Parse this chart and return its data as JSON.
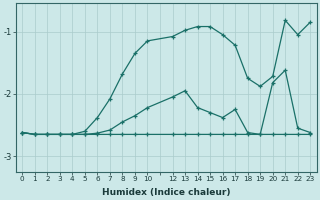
{
  "xlabel": "Humidex (Indice chaleur)",
  "bg_color": "#cce8e8",
  "grid_color": "#aacccc",
  "line_color": "#1a7068",
  "xlim": [
    -0.5,
    23.5
  ],
  "ylim": [
    -3.25,
    -0.55
  ],
  "yticks": [
    -3,
    -2,
    -1
  ],
  "line1_x": [
    0,
    1,
    2,
    3,
    4,
    5,
    6,
    7,
    8,
    9,
    10,
    12,
    13,
    14,
    15,
    16,
    17,
    18,
    19,
    20,
    21,
    22,
    23
  ],
  "line1_y": [
    -2.62,
    -2.65,
    -2.65,
    -2.65,
    -2.65,
    -2.65,
    -2.65,
    -2.65,
    -2.65,
    -2.65,
    -2.65,
    -2.65,
    -2.65,
    -2.65,
    -2.65,
    -2.65,
    -2.65,
    -2.65,
    -2.65,
    -2.65,
    -2.65,
    -2.65,
    -2.65
  ],
  "line2_x": [
    0,
    1,
    2,
    3,
    4,
    5,
    6,
    7,
    8,
    9,
    10,
    12,
    13,
    14,
    15,
    16,
    17,
    18,
    19,
    20,
    21,
    22,
    23
  ],
  "line2_y": [
    -2.62,
    -2.65,
    -2.65,
    -2.65,
    -2.65,
    -2.65,
    -2.63,
    -2.58,
    -2.45,
    -2.35,
    -2.22,
    -2.05,
    -1.95,
    -2.22,
    -2.3,
    -2.38,
    -2.25,
    -2.62,
    -2.65,
    -1.82,
    -1.62,
    -2.55,
    -2.62
  ],
  "line3_x": [
    0,
    1,
    2,
    3,
    4,
    5,
    6,
    7,
    8,
    9,
    10,
    12,
    13,
    14,
    15,
    16,
    17,
    18,
    19,
    20,
    21,
    22,
    23
  ],
  "line3_y": [
    -2.62,
    -2.65,
    -2.65,
    -2.65,
    -2.65,
    -2.6,
    -2.38,
    -2.08,
    -1.68,
    -1.35,
    -1.15,
    -1.08,
    -0.98,
    -0.92,
    -0.92,
    -1.05,
    -1.22,
    -1.75,
    -1.88,
    -1.72,
    -0.82,
    -1.05,
    -0.85
  ]
}
